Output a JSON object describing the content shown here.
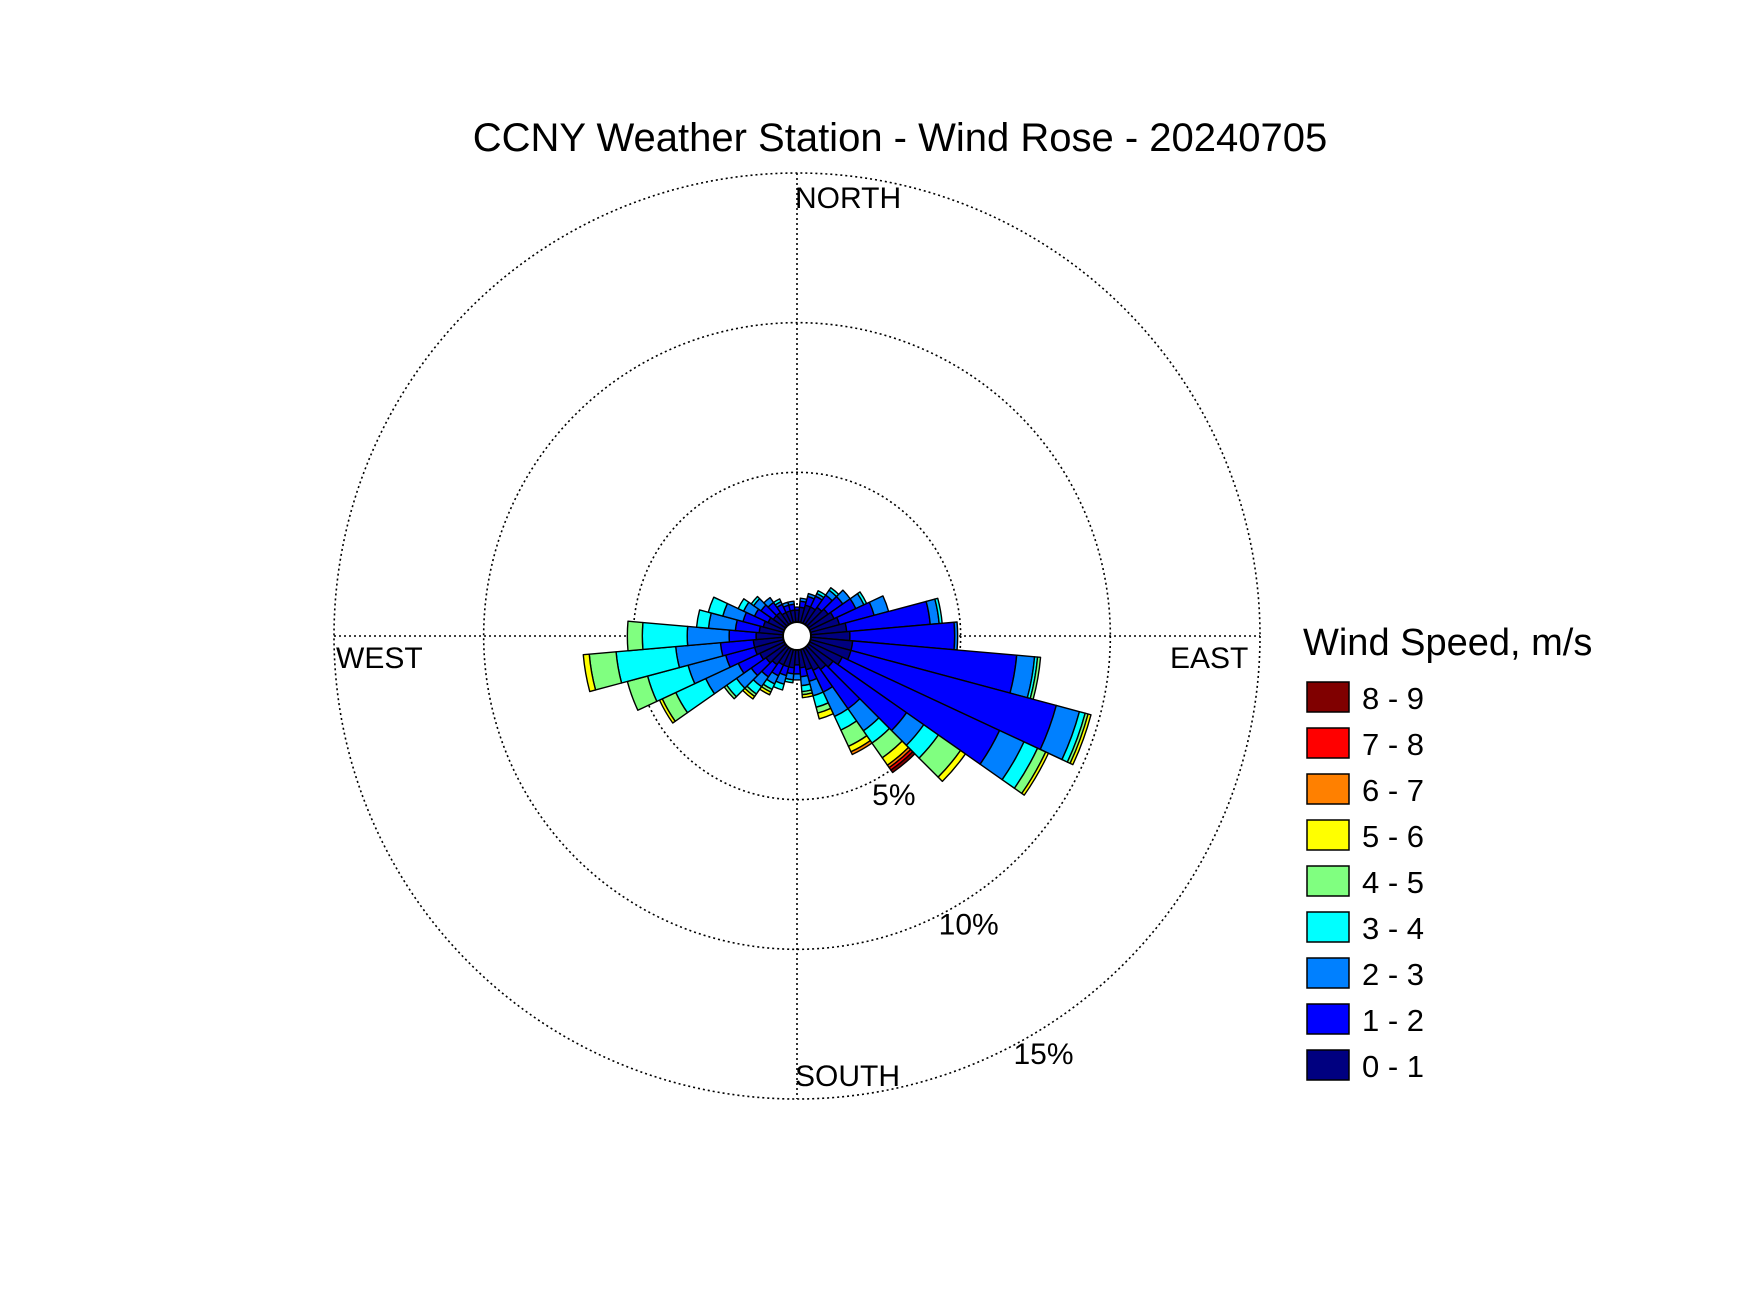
{
  "chart_data": {
    "type": "windrose",
    "title": "CCNY Weather Station - Wind Rose - 20240705",
    "direction_labels": {
      "north": "NORTH",
      "east": "EAST",
      "south": "SOUTH",
      "west": "WEST"
    },
    "radial_rings": [
      {
        "value": 5,
        "label": "5%"
      },
      {
        "value": 10,
        "label": "10%"
      },
      {
        "value": 15,
        "label": "15%"
      }
    ],
    "rmax": 15,
    "grid": true,
    "legend_title": "Wind Speed, m/s",
    "legend_placement": "right",
    "speed_bins": [
      {
        "label": "0 - 1",
        "color": "#000080"
      },
      {
        "label": "1 - 2",
        "color": "#0000ff"
      },
      {
        "label": "2 - 3",
        "color": "#0080ff"
      },
      {
        "label": "3 - 4",
        "color": "#00ffff"
      },
      {
        "label": "4 - 5",
        "color": "#80ff80"
      },
      {
        "label": "5 - 6",
        "color": "#ffff00"
      },
      {
        "label": "6 - 7",
        "color": "#ff8000"
      },
      {
        "label": "7 - 8",
        "color": "#ff0000"
      },
      {
        "label": "8 - 9",
        "color": "#800000"
      }
    ],
    "sector_width_deg": 10,
    "sectors": [
      {
        "direction": 0,
        "values": [
          0.4,
          0.1,
          0.0,
          0.0,
          0.0,
          0.0,
          0.0,
          0.0,
          0.0
        ]
      },
      {
        "direction": 10,
        "values": [
          0.5,
          0.2,
          0.1,
          0.0,
          0.0,
          0.0,
          0.0,
          0.0,
          0.0
        ]
      },
      {
        "direction": 20,
        "values": [
          0.6,
          0.3,
          0.1,
          0.0,
          0.0,
          0.0,
          0.0,
          0.0,
          0.0
        ]
      },
      {
        "direction": 30,
        "values": [
          0.6,
          0.4,
          0.1,
          0.1,
          0.0,
          0.0,
          0.0,
          0.0,
          0.0
        ]
      },
      {
        "direction": 40,
        "values": [
          0.7,
          0.5,
          0.2,
          0.1,
          0.0,
          0.0,
          0.0,
          0.0,
          0.0
        ]
      },
      {
        "direction": 50,
        "values": [
          0.8,
          0.6,
          0.3,
          0.0,
          0.0,
          0.0,
          0.0,
          0.0,
          0.0
        ]
      },
      {
        "direction": 60,
        "values": [
          0.9,
          0.8,
          0.3,
          0.1,
          0.0,
          0.0,
          0.0,
          0.0,
          0.0
        ]
      },
      {
        "direction": 70,
        "values": [
          1.0,
          1.2,
          0.5,
          0.0,
          0.0,
          0.0,
          0.0,
          0.0,
          0.0
        ]
      },
      {
        "direction": 80,
        "values": [
          1.2,
          2.8,
          0.3,
          0.1,
          0.0,
          0.0,
          0.0,
          0.0,
          0.0
        ]
      },
      {
        "direction": 90,
        "values": [
          1.3,
          3.5,
          0.1,
          0.0,
          0.0,
          0.0,
          0.0,
          0.0,
          0.0
        ]
      },
      {
        "direction": 100,
        "values": [
          1.4,
          5.5,
          0.6,
          0.1,
          0.1,
          0.0,
          0.0,
          0.0,
          0.0
        ]
      },
      {
        "direction": 110,
        "values": [
          1.4,
          7.1,
          0.8,
          0.2,
          0.1,
          0.1,
          0.0,
          0.0,
          0.0
        ]
      },
      {
        "direction": 120,
        "values": [
          1.2,
          5.8,
          0.9,
          0.5,
          0.3,
          0.1,
          0.0,
          0.0,
          0.0
        ]
      },
      {
        "direction": 130,
        "values": [
          1.0,
          3.0,
          0.7,
          0.6,
          0.9,
          0.2,
          0.0,
          0.0,
          0.0
        ]
      },
      {
        "direction": 140,
        "values": [
          0.9,
          1.6,
          0.9,
          0.5,
          0.6,
          0.3,
          0.1,
          0.1,
          0.1
        ]
      },
      {
        "direction": 150,
        "values": [
          0.8,
          0.8,
          0.9,
          0.5,
          0.6,
          0.2,
          0.1,
          0.0,
          0.0
        ]
      },
      {
        "direction": 160,
        "values": [
          0.7,
          0.4,
          0.5,
          0.4,
          0.2,
          0.2,
          0.0,
          0.0,
          0.0
        ]
      },
      {
        "direction": 170,
        "values": [
          0.6,
          0.3,
          0.3,
          0.2,
          0.1,
          0.1,
          0.0,
          0.0,
          0.0
        ]
      },
      {
        "direction": 180,
        "values": [
          0.5,
          0.3,
          0.2,
          0.0,
          0.0,
          0.0,
          0.0,
          0.0,
          0.0
        ]
      },
      {
        "direction": 190,
        "values": [
          0.6,
          0.2,
          0.2,
          0.1,
          0.0,
          0.0,
          0.0,
          0.0,
          0.0
        ]
      },
      {
        "direction": 200,
        "values": [
          0.6,
          0.3,
          0.3,
          0.2,
          0.0,
          0.0,
          0.0,
          0.0,
          0.0
        ]
      },
      {
        "direction": 210,
        "values": [
          0.6,
          0.4,
          0.3,
          0.2,
          0.1,
          0.1,
          0.0,
          0.0,
          0.0
        ]
      },
      {
        "direction": 220,
        "values": [
          0.7,
          0.5,
          0.4,
          0.3,
          0.1,
          0.1,
          0.0,
          0.0,
          0.0
        ]
      },
      {
        "direction": 230,
        "values": [
          0.8,
          0.6,
          0.6,
          0.4,
          0.1,
          0.0,
          0.0,
          0.0,
          0.0
        ]
      },
      {
        "direction": 240,
        "values": [
          0.9,
          0.8,
          1.2,
          1.1,
          0.5,
          0.1,
          0.0,
          0.0,
          0.0
        ]
      },
      {
        "direction": 250,
        "values": [
          1.0,
          1.0,
          1.3,
          1.4,
          0.7,
          0.0,
          0.0,
          0.0,
          0.0
        ]
      },
      {
        "direction": 260,
        "values": [
          1.0,
          1.1,
          1.5,
          2.0,
          0.9,
          0.2,
          0.0,
          0.0,
          0.0
        ]
      },
      {
        "direction": 270,
        "values": [
          0.9,
          0.9,
          1.4,
          1.5,
          0.5,
          0.0,
          0.0,
          0.0,
          0.0
        ]
      },
      {
        "direction": 280,
        "values": [
          0.8,
          0.8,
          0.9,
          0.4,
          0.0,
          0.0,
          0.0,
          0.0,
          0.0
        ]
      },
      {
        "direction": 290,
        "values": [
          0.7,
          0.7,
          0.7,
          0.5,
          0.0,
          0.0,
          0.0,
          0.0,
          0.0
        ]
      },
      {
        "direction": 300,
        "values": [
          0.6,
          0.5,
          0.4,
          0.2,
          0.0,
          0.0,
          0.0,
          0.0,
          0.0
        ]
      },
      {
        "direction": 310,
        "values": [
          0.5,
          0.5,
          0.3,
          0.1,
          0.0,
          0.0,
          0.0,
          0.0,
          0.0
        ]
      },
      {
        "direction": 320,
        "values": [
          0.5,
          0.4,
          0.2,
          0.0,
          0.0,
          0.0,
          0.0,
          0.0,
          0.0
        ]
      },
      {
        "direction": 330,
        "values": [
          0.4,
          0.3,
          0.1,
          0.1,
          0.0,
          0.0,
          0.0,
          0.0,
          0.0
        ]
      },
      {
        "direction": 340,
        "values": [
          0.4,
          0.2,
          0.1,
          0.0,
          0.0,
          0.0,
          0.0,
          0.0,
          0.0
        ]
      },
      {
        "direction": 350,
        "values": [
          0.4,
          0.2,
          0.1,
          0.0,
          0.0,
          0.0,
          0.0,
          0.0,
          0.0
        ]
      }
    ]
  }
}
